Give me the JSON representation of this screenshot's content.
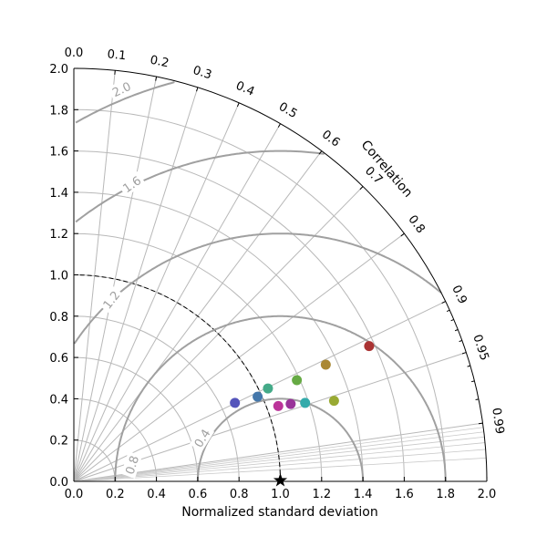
{
  "chart_data": {
    "type": "scatter",
    "subtype": "taylor-diagram",
    "xlabel": "Normalized standard deviation",
    "ylabel": "",
    "correlation_label": "Correlation",
    "xlim": [
      0.0,
      2.0
    ],
    "ylim": [
      0.0,
      2.0
    ],
    "grid": true,
    "x_ticks": [
      "0.0",
      "0.2",
      "0.4",
      "0.6",
      "0.8",
      "1.0",
      "1.2",
      "1.4",
      "1.6",
      "1.8",
      "2.0"
    ],
    "y_ticks": [
      "0.0",
      "0.2",
      "0.4",
      "0.6",
      "0.8",
      "1.0",
      "1.2",
      "1.4",
      "1.6",
      "1.8",
      "2.0"
    ],
    "correlation_ticks": [
      {
        "value": 0.0,
        "label": "0.0"
      },
      {
        "value": 0.1,
        "label": "0.1"
      },
      {
        "value": 0.2,
        "label": "0.2"
      },
      {
        "value": 0.3,
        "label": "0.3"
      },
      {
        "value": 0.4,
        "label": "0.4"
      },
      {
        "value": 0.5,
        "label": "0.5"
      },
      {
        "value": 0.6,
        "label": "0.6"
      },
      {
        "value": 0.7,
        "label": "0.7"
      },
      {
        "value": 0.8,
        "label": "0.8"
      },
      {
        "value": 0.9,
        "label": "0.9"
      },
      {
        "value": 0.95,
        "label": "0.95"
      },
      {
        "value": 0.99,
        "label": "0.99"
      }
    ],
    "reference": {
      "std": 1.0,
      "marker": "star"
    },
    "rms_contours": [
      {
        "value": 0.4,
        "label": "0.4"
      },
      {
        "value": 0.8,
        "label": "0.8"
      },
      {
        "value": 1.2,
        "label": "1.2"
      },
      {
        "value": 1.6,
        "label": "1.6"
      },
      {
        "value": 2.0,
        "label": "2.0"
      }
    ],
    "points": [
      {
        "x": 0.78,
        "y": 0.38,
        "color": "#5555bb"
      },
      {
        "x": 0.89,
        "y": 0.41,
        "color": "#4477aa"
      },
      {
        "x": 0.94,
        "y": 0.45,
        "color": "#44aa88"
      },
      {
        "x": 0.99,
        "y": 0.365,
        "color": "#bb3399"
      },
      {
        "x": 1.05,
        "y": 0.375,
        "color": "#993399"
      },
      {
        "x": 1.08,
        "y": 0.49,
        "color": "#66aa44"
      },
      {
        "x": 1.12,
        "y": 0.38,
        "color": "#33aaaa"
      },
      {
        "x": 1.22,
        "y": 0.565,
        "color": "#aa8833"
      },
      {
        "x": 1.26,
        "y": 0.39,
        "color": "#99aa33"
      },
      {
        "x": 1.43,
        "y": 0.655,
        "color": "#aa3333"
      }
    ]
  }
}
